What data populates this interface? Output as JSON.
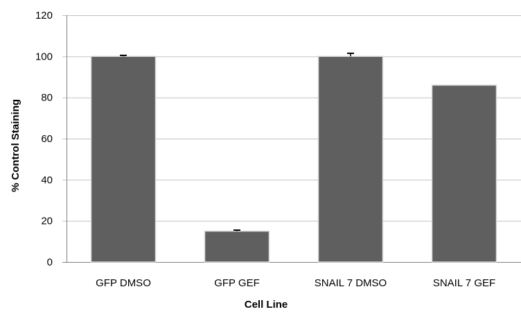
{
  "chart_data": {
    "type": "bar",
    "title": "",
    "xlabel": "Cell Line",
    "ylabel": "% Control Staining",
    "ylim": [
      0,
      120
    ],
    "yticks": [
      0,
      20,
      40,
      60,
      80,
      100,
      120
    ],
    "categories": [
      "GFP DMSO",
      "GFP GEF",
      "SNAIL 7 DMSO",
      "SNAIL 7 GEF"
    ],
    "values": [
      100,
      15,
      100,
      86
    ],
    "error": [
      0.5,
      0.5,
      1.5,
      0
    ],
    "grid": true,
    "legend": "none",
    "bar_color": "#5f5f5f",
    "grid_color": "#c0c0c0"
  }
}
